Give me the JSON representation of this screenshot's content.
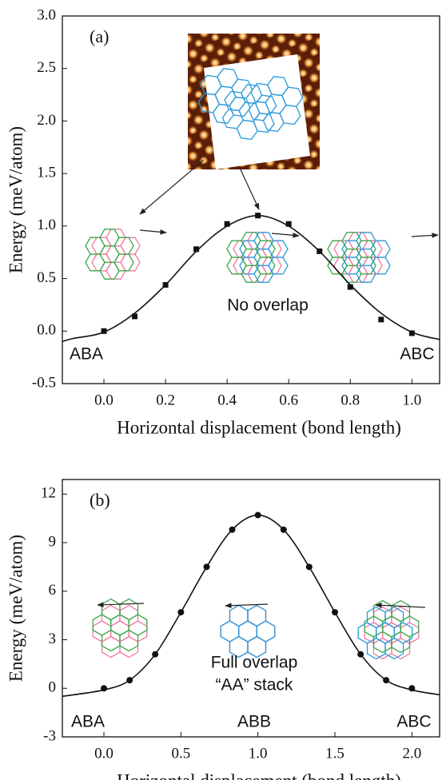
{
  "chart_data": [
    {
      "type": "scatter",
      "xlabel": "Horizontal displacement (bond length)",
      "ylabel": "Energy (meV/atom)",
      "xlim": [
        -0.135,
        1.09
      ],
      "ylim": [
        -0.5,
        3.0
      ],
      "xticks": [
        {
          "value": 0,
          "label": "0.0"
        },
        0.2,
        0.4,
        0.6,
        0.8,
        {
          "value": 1,
          "label": "1.0"
        }
      ],
      "yticks": [
        -0.5,
        {
          "value": 0,
          "label": "0.0"
        },
        0.5,
        {
          "value": 1,
          "label": "1.0"
        },
        1.5,
        {
          "value": 2,
          "label": "2.0"
        },
        2.5,
        {
          "value": 3,
          "label": "3.0"
        }
      ],
      "annotations": [
        "(a)",
        "No overlap",
        "ABA",
        "ABC"
      ],
      "series": [
        {
          "marker": "square",
          "color": "#111111",
          "x": [
            0,
            0.1,
            0.2,
            0.3,
            0.4,
            0.5,
            0.6,
            0.7,
            0.8,
            0.9,
            1.0
          ],
          "values": [
            0.0,
            0.14,
            0.44,
            0.78,
            1.02,
            1.1,
            1.02,
            0.76,
            0.42,
            0.11,
            -0.02
          ]
        },
        {
          "marker": "line",
          "color": "#111111",
          "x": [
            -0.135,
            -0.1,
            0,
            0.1,
            0.2,
            0.3,
            0.4,
            0.5,
            0.6,
            0.7,
            0.8,
            0.9,
            1.0,
            1.09
          ],
          "values": [
            -0.1,
            -0.07,
            -0.01,
            0.17,
            0.44,
            0.76,
            1.0,
            1.1,
            1.0,
            0.76,
            0.44,
            0.17,
            -0.01,
            -0.08
          ]
        }
      ]
    },
    {
      "type": "scatter",
      "xlabel": "Horizontal displacement (bond length)",
      "ylabel": "Energy (meV/atom)",
      "xlim": [
        -0.27,
        2.18
      ],
      "ylim": [
        -3,
        12.9
      ],
      "xticks": [
        {
          "value": 0,
          "label": "0.0"
        },
        0.5,
        {
          "value": 1,
          "label": "1.0"
        },
        1.5,
        {
          "value": 2,
          "label": "2.0"
        }
      ],
      "yticks": [
        -3,
        0,
        3,
        6,
        9,
        12
      ],
      "annotations": [
        "(b)",
        "Full overlap",
        "“AA” stack",
        "ABA",
        "ABB",
        "ABC"
      ],
      "series": [
        {
          "marker": "circle",
          "color": "#111111",
          "x": [
            0,
            0.167,
            0.333,
            0.5,
            0.667,
            0.833,
            1.0,
            1.167,
            1.333,
            1.5,
            1.667,
            1.833,
            2.0
          ],
          "values": [
            0,
            0.5,
            2.1,
            4.7,
            7.5,
            9.8,
            10.7,
            9.8,
            7.5,
            4.7,
            2.1,
            0.5,
            0
          ]
        },
        {
          "marker": "line",
          "color": "#111111",
          "x": [
            -0.27,
            0,
            0.167,
            0.333,
            0.5,
            0.667,
            0.833,
            1.0,
            1.167,
            1.333,
            1.5,
            1.667,
            1.833,
            2.0,
            2.18
          ],
          "values": [
            -0.5,
            -0.1,
            0.5,
            2.1,
            4.7,
            7.5,
            9.8,
            10.7,
            9.8,
            7.5,
            4.7,
            2.1,
            0.5,
            -0.1,
            -0.4
          ]
        }
      ]
    }
  ]
}
